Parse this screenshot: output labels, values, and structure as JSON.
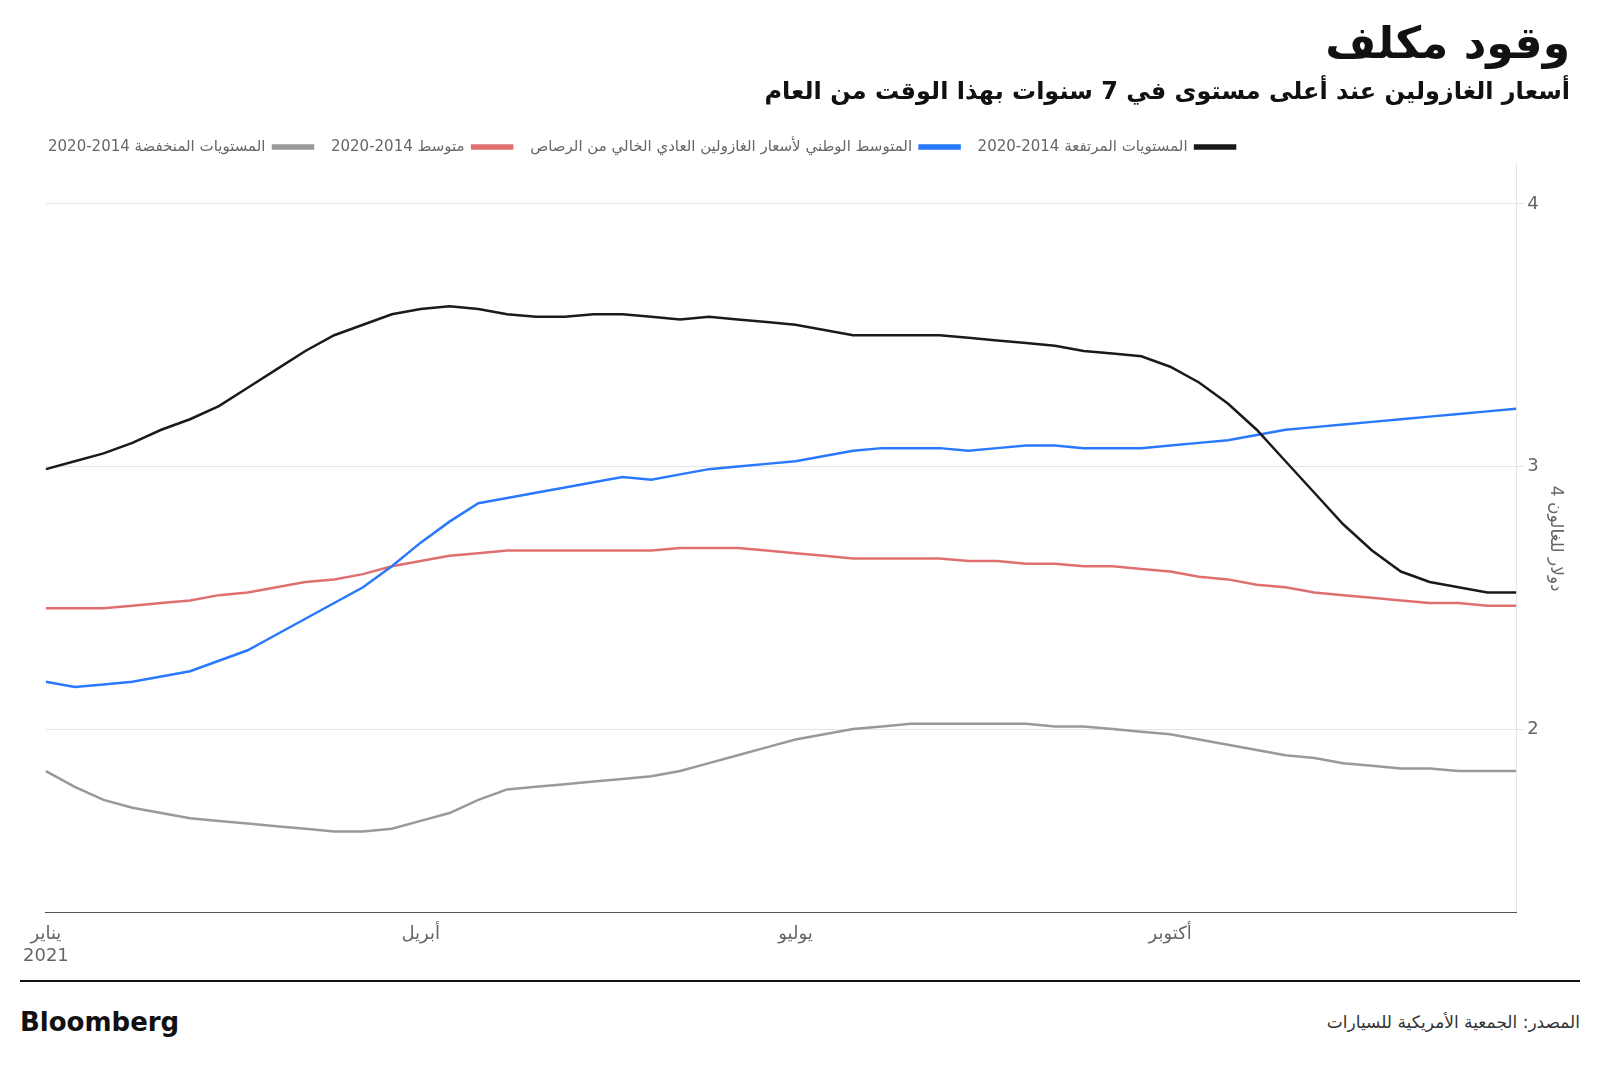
{
  "chart_data": {
    "type": "line",
    "title": "وقود مكلف",
    "subtitle": "أسعار الغازولين عند أعلى مستوى في 7 سنوات بهذا الوقت من العام",
    "ylabel": "4 دولار للغالون",
    "source": "المصدر: الجمعية الأمريكية للسيارات",
    "annotations": [
      "Bloomberg"
    ],
    "categories": [
      [
        "يناير",
        "2021"
      ],
      null,
      null,
      null,
      null,
      null,
      null,
      null,
      null,
      null,
      null,
      null,
      null,
      "أبريل",
      null,
      null,
      null,
      null,
      null,
      null,
      null,
      null,
      null,
      null,
      null,
      null,
      "يوليو",
      null,
      null,
      null,
      null,
      null,
      null,
      null,
      null,
      null,
      null,
      null,
      null,
      "أكتوبر",
      null,
      null,
      null,
      null,
      null,
      null,
      null,
      null,
      null,
      null,
      null,
      null
    ],
    "series": [
      {
        "name": "المستويات المرتفعة 2014-2020",
        "color": "#1a1a1a",
        "values": [
          2.99,
          3.02,
          3.05,
          3.09,
          3.14,
          3.18,
          3.23,
          3.3,
          3.37,
          3.44,
          3.5,
          3.54,
          3.58,
          3.6,
          3.61,
          3.6,
          3.58,
          3.57,
          3.57,
          3.58,
          3.58,
          3.57,
          3.56,
          3.57,
          3.56,
          3.55,
          3.54,
          3.52,
          3.5,
          3.5,
          3.5,
          3.5,
          3.49,
          3.48,
          3.47,
          3.46,
          3.44,
          3.43,
          3.42,
          3.38,
          3.32,
          3.24,
          3.14,
          3.02,
          2.9,
          2.78,
          2.68,
          2.6,
          2.56,
          2.54,
          2.52,
          2.52
        ]
      },
      {
        "name": "المتوسط الوطني لأسعار الغازولين العادي الخالي من الرصاص",
        "color": "#2979FF",
        "values": [
          2.18,
          2.16,
          2.17,
          2.18,
          2.2,
          2.22,
          2.26,
          2.3,
          2.36,
          2.42,
          2.48,
          2.54,
          2.62,
          2.71,
          2.79,
          2.86,
          2.88,
          2.9,
          2.92,
          2.94,
          2.96,
          2.95,
          2.97,
          2.99,
          3.0,
          3.01,
          3.02,
          3.04,
          3.06,
          3.07,
          3.07,
          3.07,
          3.06,
          3.07,
          3.08,
          3.08,
          3.07,
          3.07,
          3.07,
          3.08,
          3.09,
          3.1,
          3.12,
          3.14,
          3.15,
          3.16,
          3.17,
          3.18,
          3.19,
          3.2,
          3.21,
          3.22
        ]
      },
      {
        "name": "متوسط 2014-2020",
        "color": "#E07070",
        "values": [
          2.46,
          2.46,
          2.46,
          2.47,
          2.48,
          2.49,
          2.51,
          2.52,
          2.54,
          2.56,
          2.57,
          2.59,
          2.62,
          2.64,
          2.66,
          2.67,
          2.68,
          2.68,
          2.68,
          2.68,
          2.68,
          2.68,
          2.69,
          2.69,
          2.69,
          2.68,
          2.67,
          2.66,
          2.65,
          2.65,
          2.65,
          2.65,
          2.64,
          2.64,
          2.63,
          2.63,
          2.62,
          2.62,
          2.61,
          2.6,
          2.58,
          2.57,
          2.55,
          2.54,
          2.52,
          2.51,
          2.5,
          2.49,
          2.48,
          2.48,
          2.47,
          2.47
        ]
      },
      {
        "name": "المستويات المنخفضة 2014-2020",
        "color": "#999999",
        "values": [
          1.84,
          1.78,
          1.73,
          1.7,
          1.68,
          1.66,
          1.65,
          1.64,
          1.63,
          1.62,
          1.61,
          1.61,
          1.62,
          1.65,
          1.68,
          1.73,
          1.77,
          1.78,
          1.79,
          1.8,
          1.81,
          1.82,
          1.84,
          1.87,
          1.9,
          1.93,
          1.96,
          1.98,
          2.0,
          2.01,
          2.02,
          2.02,
          2.02,
          2.02,
          2.02,
          2.01,
          2.01,
          2.0,
          1.99,
          1.98,
          1.96,
          1.94,
          1.92,
          1.9,
          1.89,
          1.87,
          1.86,
          1.85,
          1.85,
          1.84,
          1.84,
          1.84
        ]
      }
    ],
    "ylim": [
      1.3,
      4.15
    ],
    "yticks": [
      2,
      3,
      4
    ],
    "grid": true,
    "legend": "top"
  }
}
